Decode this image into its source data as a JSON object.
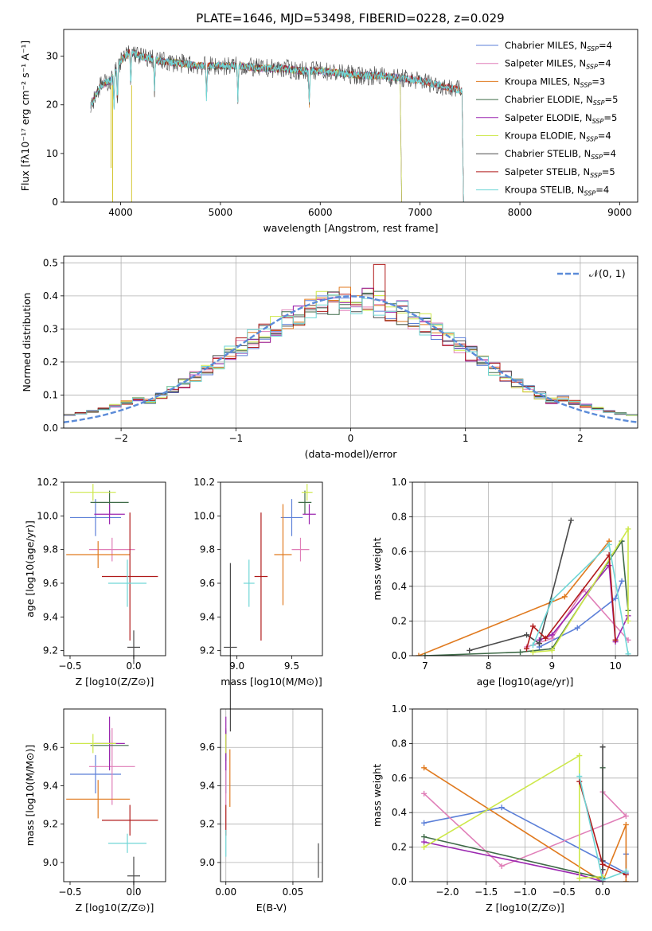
{
  "figure_title": "PLATE=1646, MJD=53498, FIBERID=0228, z=0.029",
  "colors": {
    "Chabrier MILES": "#5b7fd8",
    "Salpeter MILES": "#e07fb8",
    "Kroupa MILES": "#e07a1f",
    "Chabrier ELODIE": "#3f6b48",
    "Salpeter ELODIE": "#9b27b0",
    "Kroupa ELODIE": "#cde84a",
    "Chabrier STELIB": "#4a4a4a",
    "Salpeter STELIB": "#b01a1a",
    "Kroupa STELIB": "#6fd6d6"
  },
  "chart_data": [
    {
      "id": "spectrum",
      "type": "line",
      "title": "PLATE=1646, MJD=53498, FIBERID=0228, z=0.029",
      "xlabel": "wavelength [Angstrom, rest frame]",
      "ylabel": "Flux [fλ10⁻¹⁷ erg cm⁻² s⁻¹ A⁻¹]",
      "xlim": [
        3430,
        9180
      ],
      "ylim": [
        0,
        35.5
      ],
      "xticks": [
        4000,
        5000,
        6000,
        7000,
        8000,
        9000
      ],
      "yticks": [
        0,
        10,
        20,
        30
      ],
      "grid": false,
      "legend_position": "top-right",
      "legend": [
        {
          "label": "Chabrier MILES, NSSP=4",
          "base": "Chabrier MILES, N",
          "sub": "SSP",
          "tail": "=4"
        },
        {
          "label": "Salpeter MILES, NSSP=4",
          "base": "Salpeter MILES, N",
          "sub": "SSP",
          "tail": "=4"
        },
        {
          "label": "Kroupa MILES, NSSP=3",
          "base": "Kroupa MILES, N",
          "sub": "SSP",
          "tail": "=3"
        },
        {
          "label": "Chabrier ELODIE, NSSP=5",
          "base": "Chabrier ELODIE, N",
          "sub": "SSP",
          "tail": "=5"
        },
        {
          "label": "Salpeter ELODIE, NSSP=5",
          "base": "Salpeter ELODIE, N",
          "sub": "SSP",
          "tail": "=5"
        },
        {
          "label": "Kroupa ELODIE, NSSP=4",
          "base": "Kroupa ELODIE, N",
          "sub": "SSP",
          "tail": "=4"
        },
        {
          "label": "Chabrier STELIB, NSSP=4",
          "base": "Chabrier STELIB, N",
          "sub": "SSP",
          "tail": "=4"
        },
        {
          "label": "Salpeter STELIB, NSSP=5",
          "base": "Salpeter STELIB, N",
          "sub": "SSP",
          "tail": "=5"
        },
        {
          "label": "Kroupa STELIB, NSSP=4",
          "base": "Kroupa STELIB, N",
          "sub": "SSP",
          "tail": "=4"
        }
      ],
      "continuum": {
        "wavelength": [
          3700,
          3800,
          3900,
          4000,
          4100,
          4200,
          4400,
          4600,
          4800,
          5000,
          5200,
          5400,
          5600,
          5800,
          6000,
          6200,
          6400,
          6600,
          6800,
          7000,
          7200,
          7400,
          7600
        ],
        "flux": [
          20,
          24,
          25,
          29,
          31,
          30,
          29,
          28.5,
          28,
          28,
          28,
          27.5,
          27.5,
          27,
          27,
          26.5,
          26,
          26,
          25.5,
          25,
          24,
          23,
          22
        ]
      },
      "series_ranges": {
        "MILES": [
          3700,
          7420
        ],
        "ELODIE": [
          3700,
          6800
        ],
        "STELIB": [
          3700,
          7420
        ]
      }
    },
    {
      "id": "residuals",
      "type": "bar",
      "xlabel": "(data-model)/error",
      "ylabel": "Normed distribution",
      "xlim": [
        -2.5,
        2.5
      ],
      "ylim": [
        0,
        0.52
      ],
      "xticks": [
        -2,
        -1,
        0,
        1,
        2
      ],
      "yticks": [
        0.0,
        0.1,
        0.2,
        0.3,
        0.4,
        0.5
      ],
      "grid": true,
      "legend_position": "top-right",
      "reference_curve": {
        "label": "𝒩(0, 1)",
        "mean": 0,
        "sigma": 1
      },
      "bin_width": 0.1,
      "histogram_shape": "approximately normal, peak near 0.40"
    },
    {
      "id": "age-vs-Z",
      "type": "scatter",
      "xlabel": "Z [log10(Z/Z⊙)]",
      "ylabel": "age  [log10(age/yr)]",
      "xlim": [
        -0.55,
        0.25
      ],
      "ylim": [
        9.17,
        10.2
      ],
      "xticks": [
        -0.5,
        0.0
      ],
      "yticks": [
        9.2,
        9.4,
        9.6,
        9.8,
        10.0,
        10.2
      ],
      "grid": false,
      "points": [
        {
          "series": "Chabrier MILES",
          "x": -0.3,
          "y": 9.99,
          "xerr": 0.2,
          "yerr": 0.11
        },
        {
          "series": "Salpeter MILES",
          "x": -0.17,
          "y": 9.8,
          "xerr": 0.18,
          "yerr": 0.07
        },
        {
          "series": "Kroupa MILES",
          "x": -0.28,
          "y": 9.77,
          "xerr": 0.25,
          "yerr": 0.08
        },
        {
          "series": "Chabrier ELODIE",
          "x": -0.19,
          "y": 10.08,
          "xerr": 0.15,
          "yerr": 0.07
        },
        {
          "series": "Salpeter ELODIE",
          "x": -0.19,
          "y": 10.01,
          "xerr": 0.12,
          "yerr": 0.06
        },
        {
          "series": "Kroupa ELODIE",
          "x": -0.32,
          "y": 10.14,
          "xerr": 0.18,
          "yerr": 0.05
        },
        {
          "series": "Chabrier STELIB",
          "x": 0.0,
          "y": 9.22,
          "xerr": 0.05,
          "yerr": 0.1
        },
        {
          "series": "Salpeter STELIB",
          "x": -0.03,
          "y": 9.64,
          "xerr": 0.22,
          "yerr": 0.38
        },
        {
          "series": "Kroupa STELIB",
          "x": -0.05,
          "y": 9.6,
          "xerr": 0.15,
          "yerr": 0.14
        }
      ]
    },
    {
      "id": "age-vs-mass",
      "type": "scatter",
      "xlabel": "mass [log10(M/M⊙)]",
      "xlim": [
        8.85,
        9.78
      ],
      "ylim": [
        9.17,
        10.2
      ],
      "xticks": [
        9.0,
        9.5
      ],
      "yticks": [
        9.2,
        9.4,
        9.6,
        9.8,
        10.0,
        10.2
      ],
      "grid": false,
      "points": [
        {
          "series": "Chabrier MILES",
          "x": 9.5,
          "y": 9.99,
          "xerr": 0.1,
          "yerr": 0.11
        },
        {
          "series": "Salpeter MILES",
          "x": 9.58,
          "y": 9.8,
          "xerr": 0.08,
          "yerr": 0.07
        },
        {
          "series": "Kroupa MILES",
          "x": 9.42,
          "y": 9.77,
          "xerr": 0.08,
          "yerr": 0.3
        },
        {
          "series": "Chabrier ELODIE",
          "x": 9.62,
          "y": 10.08,
          "xerr": 0.06,
          "yerr": 0.07
        },
        {
          "series": "Salpeter ELODIE",
          "x": 9.66,
          "y": 10.01,
          "xerr": 0.06,
          "yerr": 0.06
        },
        {
          "series": "Kroupa ELODIE",
          "x": 9.64,
          "y": 10.14,
          "xerr": 0.05,
          "yerr": 0.05
        },
        {
          "series": "Chabrier STELIB",
          "x": 8.94,
          "y": 9.22,
          "xerr": 0.06,
          "yerr": 0.5
        },
        {
          "series": "Salpeter STELIB",
          "x": 9.22,
          "y": 9.64,
          "xerr": 0.06,
          "yerr": 0.38
        },
        {
          "series": "Kroupa STELIB",
          "x": 9.11,
          "y": 9.6,
          "xerr": 0.05,
          "yerr": 0.14
        }
      ]
    },
    {
      "id": "weight-vs-age",
      "type": "line",
      "xlabel": "age  [log10(age/yr)]",
      "ylabel": "mass weight",
      "xlim": [
        6.8,
        10.35
      ],
      "ylim": [
        0,
        1.0
      ],
      "xticks": [
        7,
        8,
        9,
        10
      ],
      "yticks": [
        0.0,
        0.2,
        0.4,
        0.6,
        0.8,
        1.0
      ],
      "grid": true,
      "series": [
        {
          "name": "Chabrier MILES",
          "x": [
            8.8,
            9.4,
            10.0,
            10.1
          ],
          "y": [
            0.05,
            0.16,
            0.33,
            0.43
          ]
        },
        {
          "name": "Salpeter MILES",
          "x": [
            8.6,
            9.0,
            9.5,
            10.2
          ],
          "y": [
            0.05,
            0.1,
            0.38,
            0.09
          ]
        },
        {
          "name": "Kroupa MILES",
          "x": [
            6.9,
            9.2,
            9.9
          ],
          "y": [
            0.0,
            0.34,
            0.66
          ]
        },
        {
          "name": "Chabrier ELODIE",
          "x": [
            7.0,
            8.5,
            9.0,
            10.1,
            10.2
          ],
          "y": [
            0.0,
            0.02,
            0.04,
            0.66,
            0.26
          ]
        },
        {
          "name": "Salpeter ELODIE",
          "x": [
            8.8,
            9.0,
            9.9,
            10.0,
            10.2
          ],
          "y": [
            0.09,
            0.12,
            0.52,
            0.08,
            0.23
          ]
        },
        {
          "name": "Kroupa ELODIE",
          "x": [
            8.7,
            9.0,
            10.2,
            10.2
          ],
          "y": [
            0.02,
            0.03,
            0.73,
            0.2
          ]
        },
        {
          "name": "Chabrier STELIB",
          "x": [
            7.7,
            8.6,
            8.8,
            9.3
          ],
          "y": [
            0.03,
            0.12,
            0.07,
            0.78
          ]
        },
        {
          "name": "Salpeter STELIB",
          "x": [
            8.6,
            8.7,
            8.9,
            9.9,
            10.0
          ],
          "y": [
            0.04,
            0.17,
            0.1,
            0.58,
            0.09
          ]
        },
        {
          "name": "Kroupa STELIB",
          "x": [
            8.7,
            9.0,
            9.9,
            10.2
          ],
          "y": [
            0.06,
            0.32,
            0.64,
            0.01
          ]
        }
      ]
    },
    {
      "id": "mass-vs-Z",
      "type": "scatter",
      "xlabel": "Z [log10(Z/Z⊙)]",
      "ylabel": "mass [log10(M/M⊙)]",
      "xlim": [
        -0.55,
        0.25
      ],
      "ylim": [
        8.9,
        9.8
      ],
      "xticks": [
        -0.5,
        0.0
      ],
      "yticks": [
        9.0,
        9.2,
        9.4,
        9.6
      ],
      "grid": false,
      "points": [
        {
          "series": "Chabrier MILES",
          "x": -0.3,
          "y": 9.46,
          "xerr": 0.2,
          "yerr": 0.1
        },
        {
          "series": "Salpeter MILES",
          "x": -0.17,
          "y": 9.5,
          "xerr": 0.18,
          "yerr": 0.2
        },
        {
          "series": "Kroupa MILES",
          "x": -0.28,
          "y": 9.33,
          "xerr": 0.25,
          "yerr": 0.1
        },
        {
          "series": "Chabrier ELODIE",
          "x": -0.19,
          "y": 9.61,
          "xerr": 0.15,
          "yerr": 0.08
        },
        {
          "series": "Salpeter ELODIE",
          "x": -0.19,
          "y": 9.62,
          "xerr": 0.12,
          "yerr": 0.14
        },
        {
          "series": "Kroupa ELODIE",
          "x": -0.32,
          "y": 9.62,
          "xerr": 0.18,
          "yerr": 0.05
        },
        {
          "series": "Chabrier STELIB",
          "x": 0.0,
          "y": 8.93,
          "xerr": 0.05,
          "yerr": 0.1
        },
        {
          "series": "Salpeter STELIB",
          "x": -0.03,
          "y": 9.22,
          "xerr": 0.22,
          "yerr": 0.08
        },
        {
          "series": "Kroupa STELIB",
          "x": -0.05,
          "y": 9.1,
          "xerr": 0.15,
          "yerr": 0.05
        }
      ]
    },
    {
      "id": "mass-vs-ebv",
      "type": "scatter",
      "xlabel": "E(B-V)",
      "xlim": [
        -0.004,
        0.072
      ],
      "ylim": [
        8.9,
        9.8
      ],
      "xticks": [
        0.0,
        0.05
      ],
      "yticks": [
        9.0,
        9.2,
        9.4,
        9.6
      ],
      "grid": true,
      "points": [
        {
          "series": "Chabrier MILES",
          "x": 0.0,
          "y": 9.46,
          "xerr": 0.0,
          "yerr": 0.1
        },
        {
          "series": "Salpeter MILES",
          "x": 0.0,
          "y": 9.5,
          "xerr": 0.0,
          "yerr": 0.2
        },
        {
          "series": "Kroupa MILES",
          "x": 0.003,
          "y": 9.44,
          "xerr": 0.0,
          "yerr": 0.15
        },
        {
          "series": "Chabrier ELODIE",
          "x": 0.0,
          "y": 9.61,
          "xerr": 0.0,
          "yerr": 0.08
        },
        {
          "series": "Salpeter ELODIE",
          "x": 0.0,
          "y": 9.62,
          "xerr": 0.0,
          "yerr": 0.14
        },
        {
          "series": "Kroupa ELODIE",
          "x": 0.0,
          "y": 9.62,
          "xerr": 0.0,
          "yerr": 0.05
        },
        {
          "series": "Chabrier STELIB",
          "x": 0.069,
          "y": 9.01,
          "xerr": 0.0,
          "yerr": 0.09
        },
        {
          "series": "Salpeter STELIB",
          "x": 0.0,
          "y": 9.22,
          "xerr": 0.0,
          "yerr": 0.08
        },
        {
          "series": "Kroupa STELIB",
          "x": 0.0,
          "y": 9.1,
          "xerr": 0.0,
          "yerr": 0.07
        }
      ]
    },
    {
      "id": "weight-vs-Z",
      "type": "line",
      "xlabel": "Z [log10(Z/Z⊙)]",
      "ylabel": "mass weight",
      "xlim": [
        -2.45,
        0.45
      ],
      "ylim": [
        0,
        1.0
      ],
      "xticks": [
        -2.0,
        -1.5,
        -1.0,
        -0.5,
        0.0
      ],
      "yticks": [
        0.0,
        0.2,
        0.4,
        0.6,
        0.8,
        1.0
      ],
      "grid": true,
      "series": [
        {
          "name": "Chabrier MILES",
          "x": [
            -2.3,
            -1.3,
            0.3,
            0.3
          ],
          "y": [
            0.34,
            0.43,
            0.05,
            0.16
          ]
        },
        {
          "name": "Salpeter MILES",
          "x": [
            -2.3,
            -1.3,
            0.3,
            0.0
          ],
          "y": [
            0.51,
            0.09,
            0.38,
            0.52
          ]
        },
        {
          "name": "Kroupa MILES",
          "x": [
            -2.3,
            0.0,
            0.3,
            0.3
          ],
          "y": [
            0.66,
            0.0,
            0.33,
            0.0
          ]
        },
        {
          "name": "Chabrier ELODIE",
          "x": [
            -2.3,
            0.0,
            0.0
          ],
          "y": [
            0.26,
            0.02,
            0.66
          ]
        },
        {
          "name": "Salpeter ELODIE",
          "x": [
            -2.3,
            -0.3,
            0.0,
            0.0
          ],
          "y": [
            0.23,
            0.04,
            0.0,
            0.12
          ]
        },
        {
          "name": "Kroupa ELODIE",
          "x": [
            -2.3,
            -0.3,
            -0.3,
            0.0
          ],
          "y": [
            0.2,
            0.73,
            0.02,
            0.03
          ]
        },
        {
          "name": "Chabrier STELIB",
          "x": [
            0.0,
            0.0,
            0.0
          ],
          "y": [
            0.78,
            0.07,
            0.12
          ]
        },
        {
          "name": "Salpeter STELIB",
          "x": [
            -0.3,
            0.0,
            0.3
          ],
          "y": [
            0.58,
            0.1,
            0.04
          ]
        },
        {
          "name": "Kroupa STELIB",
          "x": [
            -0.3,
            0.0,
            0.3
          ],
          "y": [
            0.61,
            0.01,
            0.06
          ]
        }
      ]
    }
  ]
}
